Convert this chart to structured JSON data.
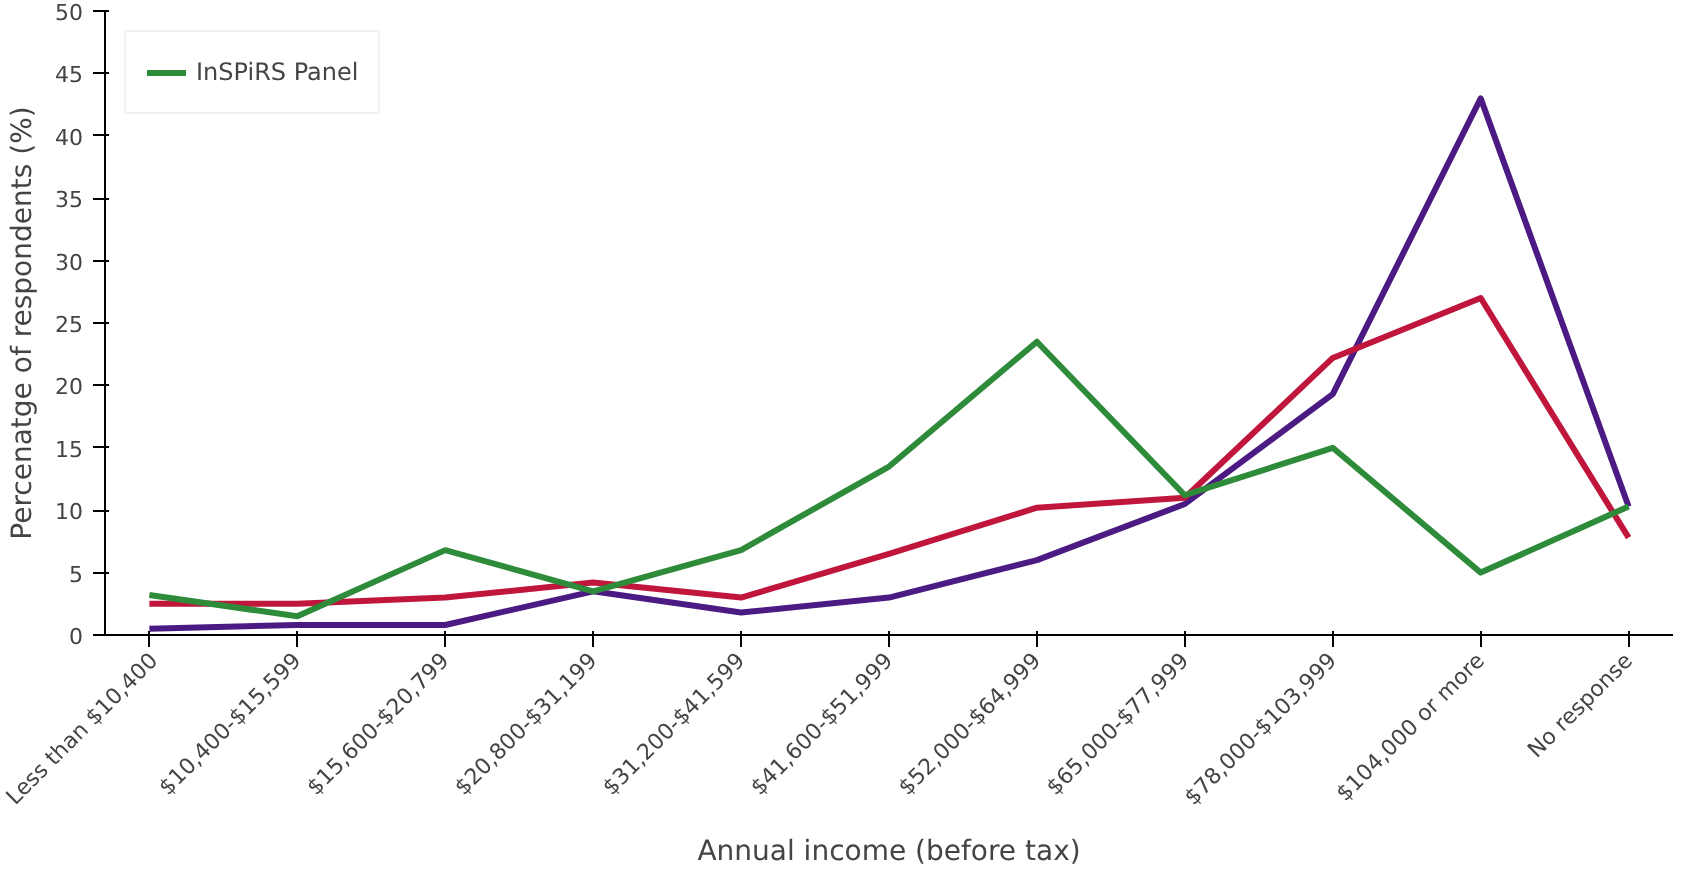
{
  "chart_data": {
    "type": "line",
    "xlabel": "Annual income (before tax)",
    "ylabel": "Percenatge of respondents (%)",
    "categories": [
      "Less than $10,400",
      "$10,400-$15,599",
      "$15,600-$20,799",
      "$20,800-$31,199",
      "$31,200-$41,599",
      "$41,600-$51,999",
      "$52,000-$64,999",
      "$65,000-$77,999",
      "$78,000-$103,999",
      "$104,000 or more",
      "No response"
    ],
    "series": [
      {
        "color": "#4b1a82",
        "values": [
          0.5,
          0.8,
          0.8,
          3.5,
          1.8,
          3,
          6,
          10.5,
          19.3,
          43,
          10.3
        ]
      },
      {
        "color": "#c0163c",
        "values": [
          2.5,
          2.5,
          3,
          4.2,
          3,
          6.5,
          10.2,
          11,
          22.2,
          27,
          7.8
        ]
      },
      {
        "name": "InSPiRS Panel",
        "color": "#2e8b3a",
        "values": [
          3.2,
          1.5,
          6.8,
          3.5,
          6.8,
          13.5,
          23.5,
          11.2,
          15,
          5,
          10.3
        ]
      }
    ],
    "ylim": [
      0,
      50
    ],
    "yticks": [
      0,
      5,
      10,
      15,
      20,
      25,
      30,
      35,
      40,
      45,
      50
    ],
    "legend": "top left",
    "grid": false
  }
}
